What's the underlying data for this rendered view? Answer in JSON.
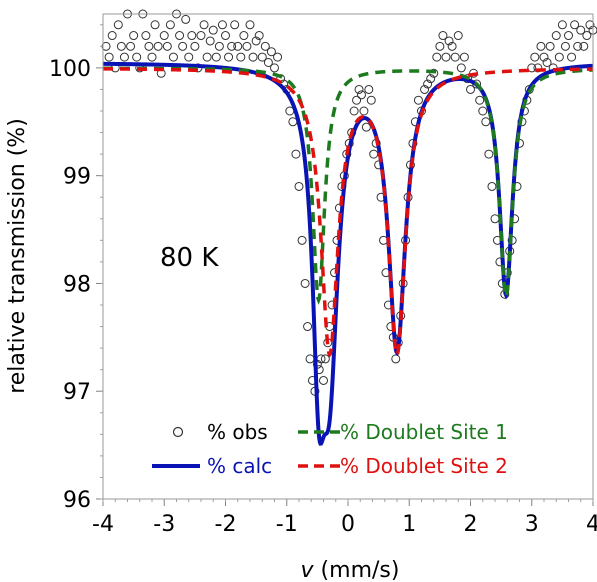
{
  "chart_data": {
    "type": "scatter",
    "title": "",
    "xlabel_italic": "v",
    "xlabel_rest": " (mm/s)",
    "ylabel": "relative transmission (%)",
    "xlim": [
      -4,
      4
    ],
    "ylim": [
      96,
      100.5
    ],
    "xticks": [
      -4,
      -3,
      -2,
      -1,
      0,
      1,
      2,
      3,
      4
    ],
    "xtick_labels": [
      "-4",
      "-3",
      "-2",
      "-1",
      "0",
      "1",
      "2",
      "3",
      "4"
    ],
    "yticks": [
      96,
      97,
      98,
      99,
      100
    ],
    "ytick_labels": [
      "96",
      "97",
      "98",
      "99",
      "100"
    ],
    "annotation": "80 K",
    "grid": false,
    "legend_placement": "bottom",
    "colors": {
      "obs": "#333333",
      "calc": "#0a14b4",
      "site1": "#1e7a1e",
      "site2": "#e01010"
    },
    "legend": [
      {
        "key": "obs",
        "label": "% obs"
      },
      {
        "key": "site1",
        "label": "% Doublet Site 1"
      },
      {
        "key": "calc",
        "label": "% calc"
      },
      {
        "key": "site2",
        "label": "% Doublet Site 2"
      }
    ],
    "series": [
      {
        "key": "site1",
        "label": "% Doublet Site 1",
        "baseline": 100.0,
        "peaks": [
          {
            "center": -0.48,
            "depth": 2.15,
            "hwhm": 0.12
          },
          {
            "center": 2.58,
            "depth": 2.12,
            "hwhm": 0.13
          }
        ]
      },
      {
        "key": "site2",
        "label": "% Doublet Site 2",
        "baseline": 100.0,
        "peaks": [
          {
            "center": -0.3,
            "depth": 2.6,
            "hwhm": 0.17
          },
          {
            "center": 0.8,
            "depth": 2.6,
            "hwhm": 0.17
          }
        ]
      }
    ],
    "calc_baseline": 100.05,
    "obs_points": [
      [
        -3.95,
        100.2
      ],
      [
        -3.9,
        100.1
      ],
      [
        -3.85,
        100.3
      ],
      [
        -3.8,
        100.0
      ],
      [
        -3.75,
        100.4
      ],
      [
        -3.7,
        100.2
      ],
      [
        -3.65,
        100.1
      ],
      [
        -3.6,
        100.5
      ],
      [
        -3.55,
        100.2
      ],
      [
        -3.5,
        100.3
      ],
      [
        -3.45,
        100.1
      ],
      [
        -3.4,
        100.0
      ],
      [
        -3.35,
        100.5
      ],
      [
        -3.3,
        100.3
      ],
      [
        -3.25,
        100.2
      ],
      [
        -3.2,
        100.1
      ],
      [
        -3.15,
        100.4
      ],
      [
        -3.1,
        100.2
      ],
      [
        -3.05,
        99.95
      ],
      [
        -3.0,
        100.3
      ],
      [
        -2.95,
        100.2
      ],
      [
        -2.9,
        100.4
      ],
      [
        -2.85,
        100.1
      ],
      [
        -2.8,
        100.5
      ],
      [
        -2.75,
        100.3
      ],
      [
        -2.7,
        100.2
      ],
      [
        -2.65,
        100.45
      ],
      [
        -2.6,
        100.1
      ],
      [
        -2.55,
        100.3
      ],
      [
        -2.5,
        100.2
      ],
      [
        -2.45,
        100.0
      ],
      [
        -2.4,
        100.3
      ],
      [
        -2.35,
        100.4
      ],
      [
        -2.3,
        100.1
      ],
      [
        -2.25,
        100.25
      ],
      [
        -2.2,
        100.35
      ],
      [
        -2.15,
        100.1
      ],
      [
        -2.1,
        100.2
      ],
      [
        -2.05,
        100.4
      ],
      [
        -2.0,
        100.3
      ],
      [
        -1.95,
        100.1
      ],
      [
        -1.9,
        100.2
      ],
      [
        -1.85,
        100.4
      ],
      [
        -1.8,
        100.2
      ],
      [
        -1.75,
        100.1
      ],
      [
        -1.7,
        100.3
      ],
      [
        -1.65,
        100.2
      ],
      [
        -1.6,
        100.4
      ],
      [
        -1.55,
        100.1
      ],
      [
        -1.5,
        100.25
      ],
      [
        -1.45,
        100.3
      ],
      [
        -1.4,
        100.1
      ],
      [
        -1.35,
        100.2
      ],
      [
        -1.3,
        100.05
      ],
      [
        -1.25,
        100.15
      ],
      [
        -1.2,
        100.0
      ],
      [
        -1.15,
        100.1
      ],
      [
        -1.1,
        99.9
      ],
      [
        -1.05,
        99.85
      ],
      [
        -1.0,
        99.8
      ],
      [
        -0.95,
        99.6
      ],
      [
        -0.9,
        99.5
      ],
      [
        -0.85,
        99.2
      ],
      [
        -0.8,
        98.9
      ],
      [
        -0.75,
        98.4
      ],
      [
        -0.7,
        98.0
      ],
      [
        -0.66,
        97.6
      ],
      [
        -0.62,
        97.3
      ],
      [
        -0.58,
        97.1
      ],
      [
        -0.54,
        97.0
      ],
      [
        -0.5,
        97.25
      ],
      [
        -0.47,
        97.2
      ],
      [
        -0.44,
        97.3
      ],
      [
        -0.4,
        97.1
      ],
      [
        -0.37,
        97.3
      ],
      [
        -0.33,
        97.45
      ],
      [
        -0.3,
        97.6
      ],
      [
        -0.26,
        97.8
      ],
      [
        -0.22,
        98.1
      ],
      [
        -0.18,
        98.4
      ],
      [
        -0.14,
        98.7
      ],
      [
        -0.1,
        98.9
      ],
      [
        -0.06,
        99.0
      ],
      [
        -0.02,
        99.2
      ],
      [
        0.02,
        99.3
      ],
      [
        0.06,
        99.4
      ],
      [
        0.1,
        99.6
      ],
      [
        0.14,
        99.7
      ],
      [
        0.18,
        99.8
      ],
      [
        0.22,
        99.75
      ],
      [
        0.26,
        99.6
      ],
      [
        0.3,
        99.45
      ],
      [
        0.34,
        99.8
      ],
      [
        0.38,
        99.7
      ],
      [
        0.42,
        99.2
      ],
      [
        0.46,
        99.3
      ],
      [
        0.5,
        99.1
      ],
      [
        0.54,
        98.8
      ],
      [
        0.58,
        98.4
      ],
      [
        0.62,
        98.1
      ],
      [
        0.66,
        97.8
      ],
      [
        0.7,
        97.6
      ],
      [
        0.74,
        97.5
      ],
      [
        0.78,
        97.3
      ],
      [
        0.82,
        97.45
      ],
      [
        0.86,
        97.7
      ],
      [
        0.9,
        98.0
      ],
      [
        0.94,
        98.4
      ],
      [
        0.98,
        98.8
      ],
      [
        1.02,
        99.1
      ],
      [
        1.06,
        99.3
      ],
      [
        1.1,
        99.5
      ],
      [
        1.15,
        99.7
      ],
      [
        1.2,
        99.6
      ],
      [
        1.25,
        99.8
      ],
      [
        1.3,
        99.85
      ],
      [
        1.35,
        99.9
      ],
      [
        1.4,
        99.95
      ],
      [
        1.45,
        100.1
      ],
      [
        1.5,
        100.2
      ],
      [
        1.55,
        100.3
      ],
      [
        1.6,
        100.1
      ],
      [
        1.65,
        100.25
      ],
      [
        1.7,
        100.2
      ],
      [
        1.75,
        100.1
      ],
      [
        1.8,
        100.3
      ],
      [
        1.85,
        100.0
      ],
      [
        1.9,
        100.1
      ],
      [
        1.95,
        99.9
      ],
      [
        2.0,
        99.8
      ],
      [
        2.05,
        99.95
      ],
      [
        2.1,
        99.85
      ],
      [
        2.15,
        99.7
      ],
      [
        2.2,
        99.6
      ],
      [
        2.25,
        99.5
      ],
      [
        2.3,
        99.2
      ],
      [
        2.35,
        98.9
      ],
      [
        2.4,
        98.6
      ],
      [
        2.44,
        98.4
      ],
      [
        2.48,
        98.2
      ],
      [
        2.52,
        98.0
      ],
      [
        2.56,
        97.9
      ],
      [
        2.6,
        98.1
      ],
      [
        2.64,
        98.3
      ],
      [
        2.68,
        98.4
      ],
      [
        2.72,
        98.6
      ],
      [
        2.76,
        98.9
      ],
      [
        2.8,
        99.3
      ],
      [
        2.84,
        99.5
      ],
      [
        2.88,
        99.6
      ],
      [
        2.92,
        99.7
      ],
      [
        2.96,
        99.8
      ],
      [
        3.0,
        100.0
      ],
      [
        3.05,
        100.1
      ],
      [
        3.1,
        100.0
      ],
      [
        3.15,
        100.2
      ],
      [
        3.2,
        100.1
      ],
      [
        3.25,
        100.05
      ],
      [
        3.3,
        100.2
      ],
      [
        3.35,
        100.0
      ],
      [
        3.4,
        100.3
      ],
      [
        3.45,
        100.1
      ],
      [
        3.5,
        100.4
      ],
      [
        3.55,
        100.2
      ],
      [
        3.6,
        100.3
      ],
      [
        3.65,
        100.1
      ],
      [
        3.7,
        100.4
      ],
      [
        3.75,
        100.2
      ],
      [
        3.8,
        100.35
      ],
      [
        3.85,
        100.2
      ],
      [
        3.9,
        100.3
      ],
      [
        3.95,
        100.4
      ],
      [
        4.0,
        100.35
      ]
    ]
  }
}
